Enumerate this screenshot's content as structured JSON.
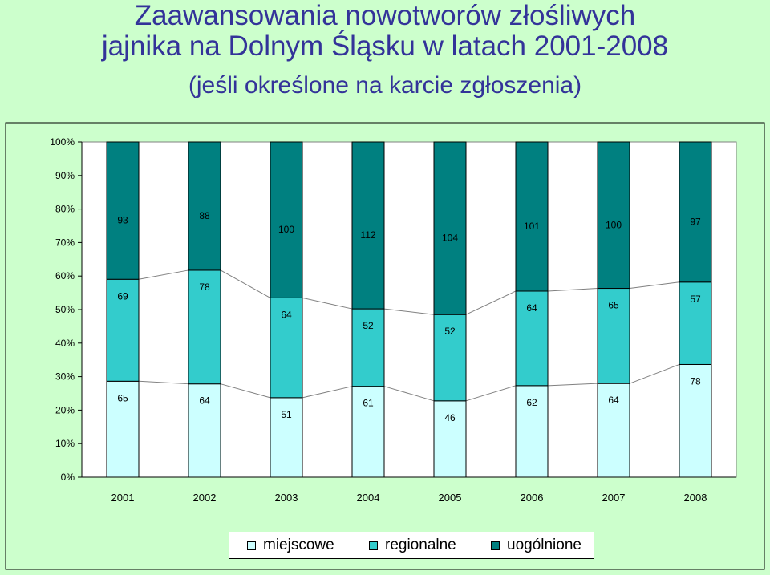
{
  "title_lines": [
    "Zaawansowania nowotworów złośliwych",
    "jajnika na Dolnym Śląsku  w latach 2001-2008",
    "(jeśli określone na karcie zgłoszenia)"
  ],
  "colors": {
    "background": "#ccffcc",
    "plot": "#ffffff",
    "miejscowe": "#ccffff",
    "regionalne": "#33cccc",
    "uogolnione": "#008080",
    "title": "#333399"
  },
  "chart_data": {
    "type": "bar",
    "stacked": "percent",
    "title": "Zaawansowania nowotworów złośliwych jajnika na Dolnym Śląsku  w latach 2001-2008 (jeśli określone na karcie zgłoszenia)",
    "categories": [
      "2001",
      "2002",
      "2003",
      "2004",
      "2005",
      "2006",
      "2007",
      "2008"
    ],
    "series": [
      {
        "name": "miejscowe",
        "values": [
          65,
          64,
          51,
          61,
          46,
          62,
          64,
          78
        ]
      },
      {
        "name": "regionalne",
        "values": [
          69,
          78,
          64,
          52,
          52,
          64,
          65,
          57
        ]
      },
      {
        "name": "uogólnione",
        "values": [
          93,
          88,
          100,
          112,
          104,
          101,
          100,
          97
        ]
      }
    ],
    "yticks": [
      "0%",
      "10%",
      "20%",
      "30%",
      "40%",
      "50%",
      "60%",
      "70%",
      "80%",
      "90%",
      "100%"
    ],
    "ylim": [
      0,
      100
    ],
    "grid": false,
    "series_lines": true,
    "legend_position": "bottom"
  }
}
